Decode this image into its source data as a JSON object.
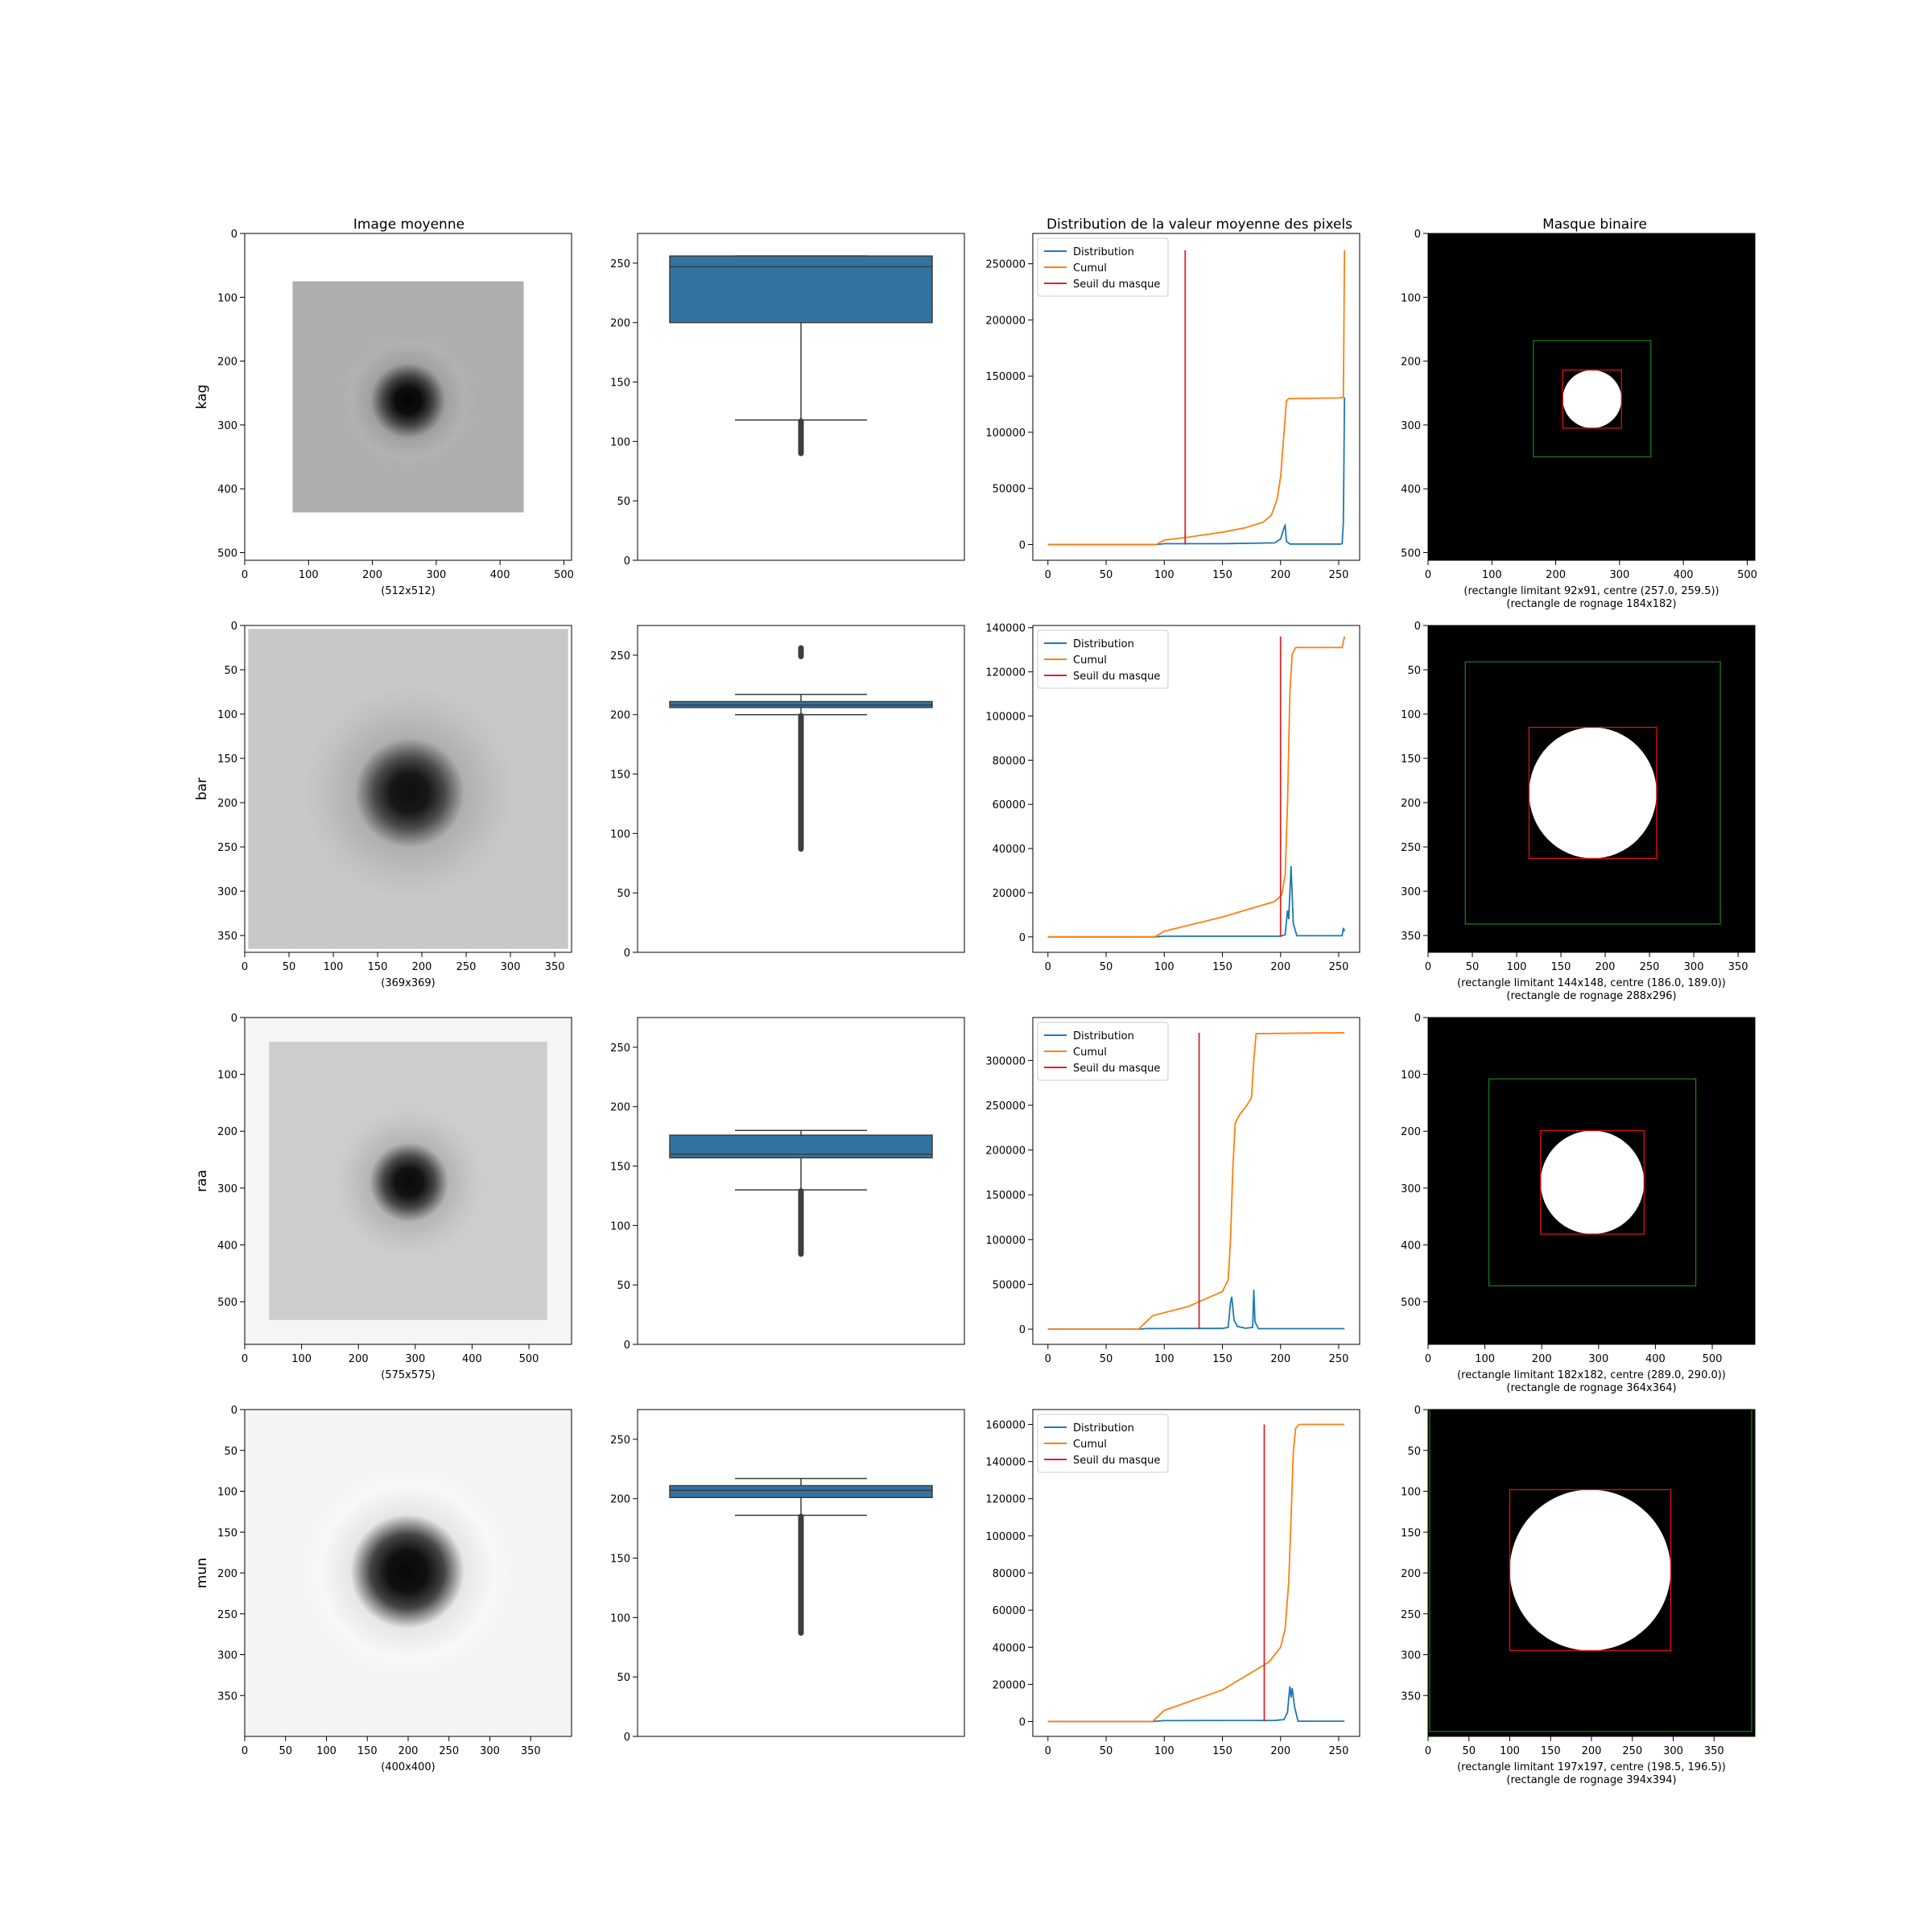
{
  "figure": {
    "col_titles": [
      "Image moyenne",
      "",
      "Distribution de la valeur moyenne des pixels",
      "Masque binaire"
    ]
  },
  "colors": {
    "distribution": "#1f77b4",
    "cumul": "#ff7f0e",
    "seuil": "#d62728",
    "box": "#3274a1",
    "mask_inner_rect": "#e01010",
    "mask_outer_rect": "#1a7a1a"
  },
  "legend": [
    "Distribution",
    "Cumul",
    "Seuil du masque"
  ],
  "chart_data": [
    {
      "row_label": "kag",
      "size_label": "(512x512)",
      "mask_caption": [
        "(rectangle limitant 92x91, centre (257.0, 259.5))",
        "(rectangle de rognage 184x182)"
      ],
      "image": {
        "type": "heatmap",
        "size": 512,
        "ticks": [
          0,
          100,
          200,
          300,
          400,
          500
        ],
        "frame": [
          75,
          75,
          437,
          437
        ],
        "frame_gray": 174,
        "outside_gray": 255,
        "blob": {
          "cx": 256,
          "cy": 262,
          "r_core": 38,
          "r_fade": 110,
          "core_gray": 5,
          "ring_gray": 170
        }
      },
      "box": {
        "type": "box",
        "ylim": [
          0,
          275
        ],
        "ticks": [
          0,
          50,
          100,
          150,
          200,
          250
        ],
        "q1": 200,
        "median": 247,
        "q3": 256,
        "whisker_low": 118,
        "whisker_high": 256,
        "outliers": [
          90,
          117
        ]
      },
      "dist": {
        "type": "line",
        "x_ticks": [
          0,
          50,
          100,
          150,
          200,
          250
        ],
        "xlim": [
          -13,
          268
        ],
        "ylim": [
          -14000,
          277000
        ],
        "y_ticks": [
          0,
          50000,
          100000,
          150000,
          200000,
          250000
        ],
        "threshold": {
          "x": 118,
          "y_top": 262000
        },
        "distribution": [
          [
            0,
            0
          ],
          [
            93,
            0
          ],
          [
            100,
            800
          ],
          [
            150,
            800
          ],
          [
            195,
            1500
          ],
          [
            200,
            5000
          ],
          [
            203,
            15000
          ],
          [
            204,
            17000
          ],
          [
            205,
            3000
          ],
          [
            208,
            500
          ],
          [
            252,
            500
          ],
          [
            253,
            1000
          ],
          [
            254,
            20000
          ],
          [
            255,
            131000
          ]
        ],
        "cumul": [
          [
            0,
            0
          ],
          [
            93,
            0
          ],
          [
            100,
            4000
          ],
          [
            120,
            6500
          ],
          [
            150,
            11000
          ],
          [
            170,
            15000
          ],
          [
            185,
            20000
          ],
          [
            192,
            26000
          ],
          [
            197,
            40000
          ],
          [
            200,
            60000
          ],
          [
            203,
            100000
          ],
          [
            205,
            128000
          ],
          [
            207,
            130000
          ],
          [
            250,
            130500
          ],
          [
            254,
            131000
          ],
          [
            255,
            262000
          ]
        ]
      },
      "mask": {
        "type": "heatmap",
        "size": 512,
        "ticks": [
          0,
          100,
          200,
          300,
          400,
          500
        ],
        "circle": {
          "cx": 257,
          "cy": 259.5,
          "rx": 46,
          "ry": 45.5
        },
        "inner": [
          211,
          214,
          303,
          305
        ],
        "outer": [
          165,
          168,
          349,
          350
        ]
      }
    },
    {
      "row_label": "bar",
      "size_label": "(369x369)",
      "mask_caption": [
        "(rectangle limitant 144x148, centre (186.0, 189.0))",
        "(rectangle de rognage 288x296)"
      ],
      "image": {
        "type": "heatmap",
        "size": 369,
        "ticks": [
          0,
          50,
          100,
          150,
          200,
          250,
          300,
          350
        ],
        "frame": [
          4,
          4,
          365,
          365
        ],
        "frame_gray": 200,
        "outside_gray": 255,
        "blob": {
          "cx": 186,
          "cy": 189,
          "r_core": 40,
          "r_fade": 120,
          "core_gray": 15,
          "ring_gray": 185
        }
      },
      "box": {
        "type": "box",
        "ylim": [
          0,
          275
        ],
        "ticks": [
          0,
          50,
          100,
          150,
          200,
          250
        ],
        "q1": 206,
        "median": 208,
        "q3": 211,
        "whisker_low": 200,
        "whisker_high": 217,
        "outliers": [
          87,
          199
        ],
        "outliers_high": [
          249,
          256
        ]
      },
      "dist": {
        "type": "line",
        "x_ticks": [
          0,
          50,
          100,
          150,
          200,
          250
        ],
        "xlim": [
          -13,
          268
        ],
        "ylim": [
          -7000,
          141000
        ],
        "y_ticks": [
          0,
          20000,
          40000,
          60000,
          80000,
          100000,
          120000,
          140000
        ],
        "threshold": {
          "x": 200,
          "y_top": 136000
        },
        "distribution": [
          [
            0,
            0
          ],
          [
            92,
            0
          ],
          [
            100,
            300
          ],
          [
            200,
            300
          ],
          [
            204,
            1000
          ],
          [
            206,
            12000
          ],
          [
            207,
            8000
          ],
          [
            209,
            32000
          ],
          [
            211,
            6000
          ],
          [
            214,
            500
          ],
          [
            253,
            500
          ],
          [
            254,
            4000
          ],
          [
            255,
            2500
          ]
        ],
        "cumul": [
          [
            0,
            0
          ],
          [
            92,
            0
          ],
          [
            100,
            2500
          ],
          [
            150,
            9000
          ],
          [
            195,
            16000
          ],
          [
            201,
            19000
          ],
          [
            204,
            28000
          ],
          [
            206,
            60000
          ],
          [
            208,
            110000
          ],
          [
            210,
            128000
          ],
          [
            213,
            131000
          ],
          [
            253,
            131000
          ],
          [
            255,
            136000
          ]
        ]
      },
      "mask": {
        "type": "heatmap",
        "size": 369,
        "ticks": [
          0,
          50,
          100,
          150,
          200,
          250,
          300,
          350
        ],
        "circle": {
          "cx": 186,
          "cy": 189,
          "rx": 72,
          "ry": 74
        },
        "inner": [
          114,
          115,
          258,
          263
        ],
        "outer": [
          42,
          41,
          330,
          337
        ]
      }
    },
    {
      "row_label": "raa",
      "size_label": "(575x575)",
      "mask_caption": [
        "(rectangle limitant 182x182, centre (289.0, 290.0))",
        "(rectangle de rognage 364x364)"
      ],
      "image": {
        "type": "heatmap",
        "size": 575,
        "ticks": [
          0,
          100,
          200,
          300,
          400,
          500
        ],
        "frame": [
          43,
          43,
          532,
          532
        ],
        "frame_gray": 205,
        "outside_gray": 245,
        "blob": {
          "cx": 289,
          "cy": 290,
          "r_core": 45,
          "r_fade": 130,
          "core_gray": 10,
          "ring_gray": 190
        }
      },
      "box": {
        "type": "box",
        "ylim": [
          0,
          275
        ],
        "ticks": [
          0,
          50,
          100,
          150,
          200,
          250
        ],
        "q1": 157,
        "median": 160,
        "q3": 176,
        "whisker_low": 130,
        "whisker_high": 180,
        "outliers": [
          76,
          129
        ]
      },
      "dist": {
        "type": "line",
        "x_ticks": [
          0,
          50,
          100,
          150,
          200,
          250
        ],
        "xlim": [
          -13,
          268
        ],
        "ylim": [
          -17000,
          348000
        ],
        "y_ticks": [
          0,
          50000,
          100000,
          150000,
          200000,
          250000,
          300000
        ],
        "threshold": {
          "x": 130,
          "y_top": 331000
        },
        "distribution": [
          [
            0,
            0
          ],
          [
            78,
            0
          ],
          [
            85,
            600
          ],
          [
            150,
            800
          ],
          [
            155,
            2000
          ],
          [
            157,
            30000
          ],
          [
            158,
            36000
          ],
          [
            160,
            10000
          ],
          [
            163,
            3000
          ],
          [
            170,
            1000
          ],
          [
            176,
            2000
          ],
          [
            177,
            44000
          ],
          [
            178,
            8000
          ],
          [
            181,
            500
          ],
          [
            255,
            500
          ]
        ],
        "cumul": [
          [
            0,
            0
          ],
          [
            78,
            0
          ],
          [
            90,
            15000
          ],
          [
            120,
            25000
          ],
          [
            150,
            42000
          ],
          [
            155,
            55000
          ],
          [
            157,
            100000
          ],
          [
            159,
            180000
          ],
          [
            161,
            230000
          ],
          [
            165,
            240000
          ],
          [
            170,
            248000
          ],
          [
            175,
            258000
          ],
          [
            177,
            300000
          ],
          [
            179,
            330000
          ],
          [
            255,
            331000
          ]
        ]
      },
      "mask": {
        "type": "heatmap",
        "size": 575,
        "ticks": [
          0,
          100,
          200,
          300,
          400,
          500
        ],
        "circle": {
          "cx": 289,
          "cy": 290,
          "rx": 91,
          "ry": 91
        },
        "inner": [
          198,
          199,
          380,
          381
        ],
        "outer": [
          107,
          108,
          471,
          472
        ]
      }
    },
    {
      "row_label": "mun",
      "size_label": "(400x400)",
      "mask_caption": [
        "(rectangle limitant 197x197, centre (198.5, 196.5))",
        "(rectangle de rognage 394x394)"
      ],
      "image": {
        "type": "heatmap",
        "size": 400,
        "ticks": [
          0,
          50,
          100,
          150,
          200,
          250,
          300,
          350
        ],
        "frame": [
          0,
          0,
          400,
          400
        ],
        "frame_gray": 244,
        "outside_gray": 244,
        "blob": {
          "cx": 199,
          "cy": 198,
          "r_core": 45,
          "r_fade": 130,
          "core_gray": 8,
          "ring_gray": 240
        }
      },
      "box": {
        "type": "box",
        "ylim": [
          0,
          275
        ],
        "ticks": [
          0,
          50,
          100,
          150,
          200,
          250
        ],
        "q1": 201,
        "median": 207,
        "q3": 211,
        "whisker_low": 186,
        "whisker_high": 217,
        "outliers": [
          87,
          185
        ]
      },
      "dist": {
        "type": "line",
        "x_ticks": [
          0,
          50,
          100,
          150,
          200,
          250
        ],
        "xlim": [
          -13,
          268
        ],
        "ylim": [
          -8000,
          168000
        ],
        "y_ticks": [
          0,
          20000,
          40000,
          60000,
          80000,
          100000,
          120000,
          140000,
          160000
        ],
        "threshold": {
          "x": 186,
          "y_top": 160000
        },
        "distribution": [
          [
            0,
            0
          ],
          [
            90,
            0
          ],
          [
            100,
            500
          ],
          [
            195,
            600
          ],
          [
            203,
            1000
          ],
          [
            206,
            5000
          ],
          [
            208,
            19000
          ],
          [
            209,
            13000
          ],
          [
            210,
            18000
          ],
          [
            212,
            8000
          ],
          [
            215,
            200
          ],
          [
            255,
            200
          ]
        ],
        "cumul": [
          [
            0,
            0
          ],
          [
            90,
            0
          ],
          [
            100,
            6000
          ],
          [
            150,
            17000
          ],
          [
            190,
            32000
          ],
          [
            200,
            40000
          ],
          [
            204,
            50000
          ],
          [
            207,
            75000
          ],
          [
            209,
            110000
          ],
          [
            211,
            145000
          ],
          [
            213,
            158000
          ],
          [
            216,
            160000
          ],
          [
            255,
            160000
          ]
        ]
      },
      "mask": {
        "type": "heatmap",
        "size": 400,
        "ticks": [
          0,
          50,
          100,
          150,
          200,
          250,
          300,
          350
        ],
        "circle": {
          "cx": 198.5,
          "cy": 196.5,
          "rx": 98.5,
          "ry": 98.5
        },
        "inner": [
          100,
          98,
          297,
          295
        ],
        "outer": [
          2,
          0,
          396,
          394
        ]
      }
    }
  ]
}
